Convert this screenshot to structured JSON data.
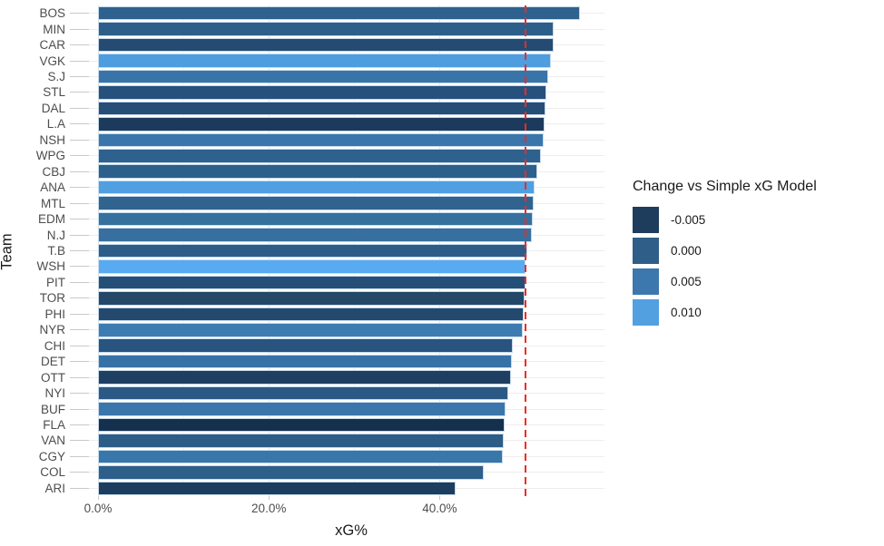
{
  "chart_data": {
    "type": "bar",
    "orientation": "horizontal",
    "title": "",
    "xlabel": "xG%",
    "ylabel": "Team",
    "categories": [
      "BOS",
      "MIN",
      "CAR",
      "VGK",
      "S.J",
      "STL",
      "DAL",
      "L.A",
      "NSH",
      "WPG",
      "CBJ",
      "ANA",
      "MTL",
      "EDM",
      "N.J",
      "T.B",
      "WSH",
      "PIT",
      "TOR",
      "PHI",
      "NYR",
      "CHI",
      "DET",
      "OTT",
      "NYI",
      "BUF",
      "FLA",
      "VAN",
      "CGY",
      "COL",
      "ARI"
    ],
    "values": [
      56.4,
      53.4,
      53.3,
      53.0,
      52.7,
      52.5,
      52.4,
      52.3,
      52.2,
      51.9,
      51.4,
      51.1,
      51.0,
      50.9,
      50.8,
      50.3,
      50.1,
      50.0,
      49.9,
      49.8,
      49.7,
      48.6,
      48.5,
      48.4,
      48.0,
      47.7,
      47.6,
      47.5,
      47.4,
      45.2,
      41.9
    ],
    "value_unit": "percent",
    "bar_colors": [
      "#2f618e",
      "#2e5e8a",
      "#254b72",
      "#4d9ddf",
      "#3874a8",
      "#27517c",
      "#264e77",
      "#1b3a5c",
      "#3a76ab",
      "#2e618d",
      "#2d5f8b",
      "#4f9fe1",
      "#31638f",
      "#35709f",
      "#376fa0",
      "#2d5c88",
      "#58abf0",
      "#264f78",
      "#234868",
      "#24496e",
      "#3d7cb1",
      "#28547f",
      "#3672a5",
      "#1e3f61",
      "#2c5984",
      "#3a76aa",
      "#14304d",
      "#2d5c87",
      "#3976aa",
      "#2e5e8a",
      "#1d3d5e"
    ],
    "xlim": [
      0,
      60
    ],
    "x_major_ticks": [
      0,
      20,
      40
    ],
    "x_minor_gridlines": [
      10,
      30,
      50
    ],
    "x_tick_labels": [
      "0.0%",
      "20.0%",
      "40.0%"
    ],
    "grid": "on",
    "reference_line": {
      "value": 50,
      "style": "dashed",
      "color": "#ee2c24"
    },
    "legend": {
      "title": "Change vs Simple xG Model",
      "position": "right",
      "entries": [
        {
          "label": "-0.005",
          "color": "#1e3c5c"
        },
        {
          "label": "0.000",
          "color": "#2f5e89"
        },
        {
          "label": "0.005",
          "color": "#3c78ad"
        },
        {
          "label": "0.010",
          "color": "#52a0e0"
        }
      ]
    }
  },
  "colors": {
    "background": "#ffffff",
    "major_grid": "#e4e4e4",
    "minor_grid": "#f2f2f2",
    "row_grid": "#ededed",
    "axis_text": "#4d4d4d",
    "axis_title": "#1a1a1a",
    "bar_border": "#cfe0f0",
    "tick_mark": "#c9c9c9"
  }
}
